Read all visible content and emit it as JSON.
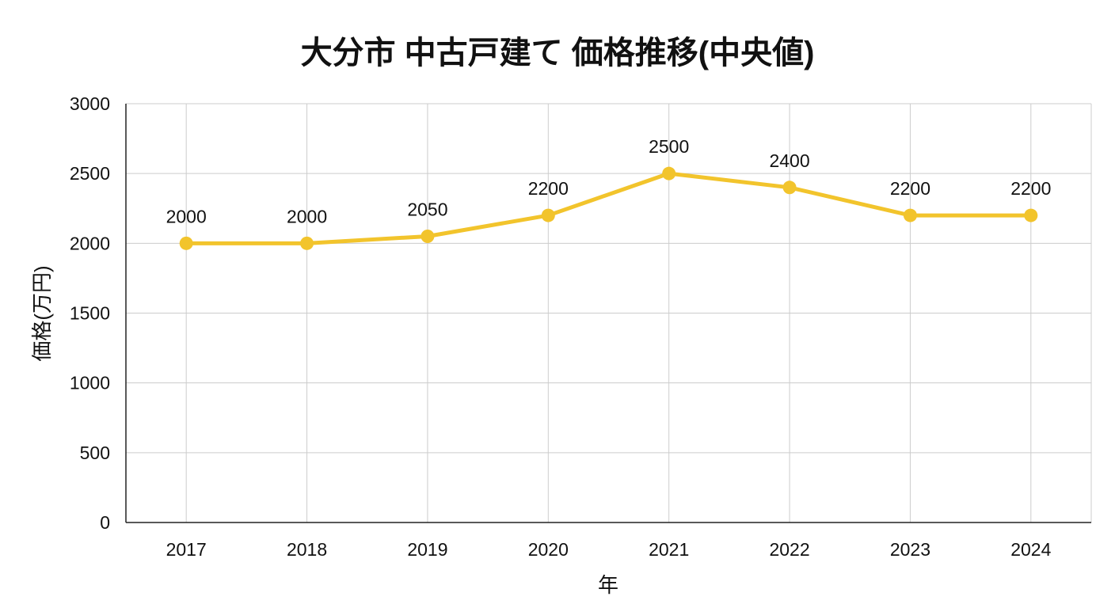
{
  "chart_data": {
    "type": "line",
    "title": "大分市 中古戸建て 価格推移(中央値)",
    "xlabel": "年",
    "ylabel": "価格(万円)",
    "categories": [
      "2017",
      "2018",
      "2019",
      "2020",
      "2021",
      "2022",
      "2023",
      "2024"
    ],
    "series": [
      {
        "values": [
          2000,
          2000,
          2050,
          2200,
          2500,
          2400,
          2200,
          2200
        ],
        "color": "#F2C42C"
      }
    ],
    "data_labels": [
      "2000",
      "2000",
      "2050",
      "2200",
      "2500",
      "2400",
      "2200",
      "2200"
    ],
    "ylim": [
      0,
      3000
    ],
    "yticks": [
      0,
      500,
      1000,
      1500,
      2000,
      2500,
      3000
    ],
    "ytick_labels": [
      "0",
      "500",
      "1000",
      "1500",
      "2000",
      "2500",
      "3000"
    ],
    "grid": true,
    "legend": "none"
  }
}
